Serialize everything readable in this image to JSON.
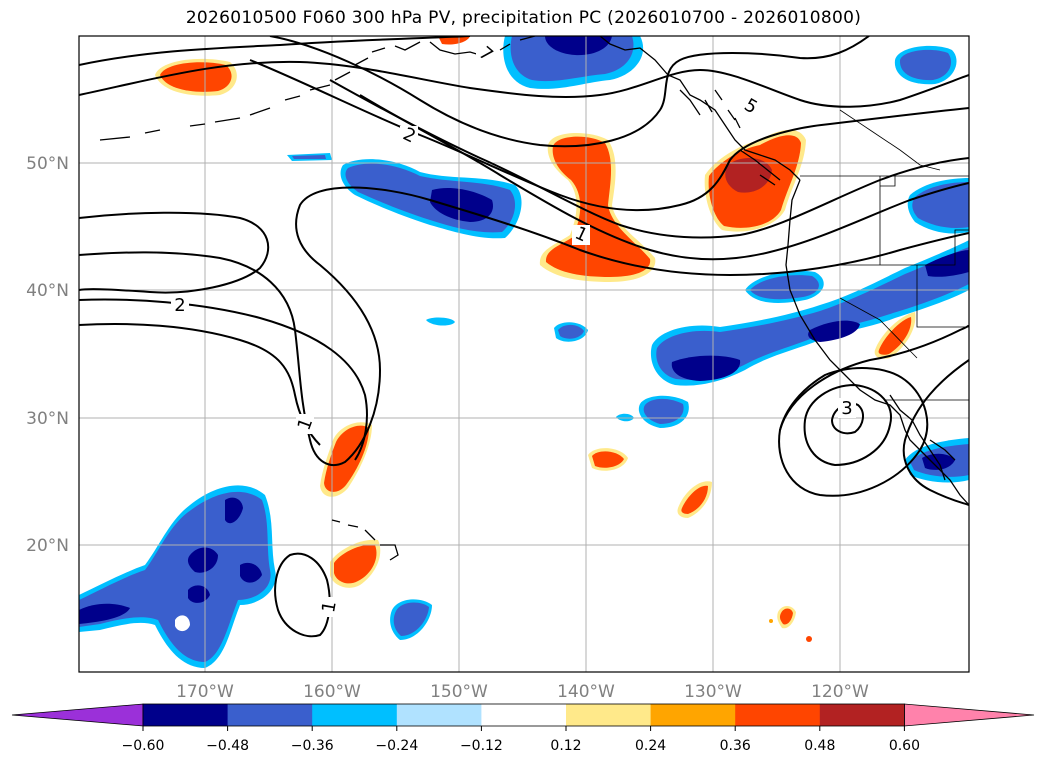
{
  "title": "2026010500 F060 300 hPa PV, precipitation PC (2026010700 - 2026010800)",
  "latitude_labels": [
    "50°N",
    "40°N",
    "30°N",
    "20°N"
  ],
  "longitude_labels": [
    "170°W",
    "160°W",
    "150°W",
    "140°W",
    "130°W",
    "120°W"
  ],
  "contour_labels": [
    "7",
    "5",
    "2",
    "1",
    "2",
    "1",
    "3",
    "1"
  ],
  "colorbar": {
    "tick_labels": [
      "−0.60",
      "−0.48",
      "−0.36",
      "−0.24",
      "−0.12",
      "0.12",
      "0.24",
      "0.36",
      "0.48",
      "0.60"
    ],
    "colors": [
      "#9b30d9",
      "#00008b",
      "#3a5fcd",
      "#00bfff",
      "#b0e2ff",
      "#ffffff",
      "#ffe98a",
      "#ffa500",
      "#ff4500",
      "#b22222",
      "#ff82ab"
    ]
  }
}
